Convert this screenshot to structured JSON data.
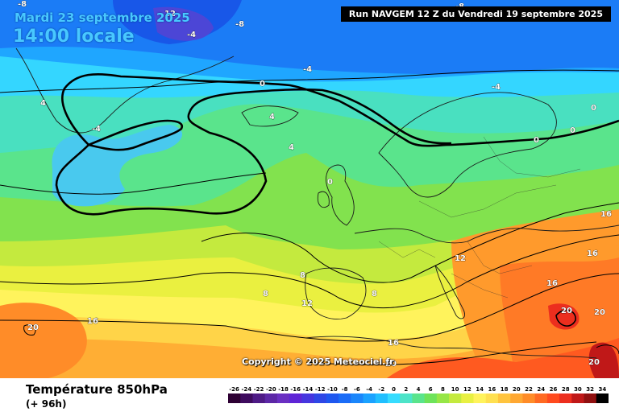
{
  "header": {
    "valid_date": "Mardi 23 septembre 2025",
    "valid_time": "14:00 locale",
    "run_info": "Run NAVGEM 12 Z du Vendredi 19 septembre 2025"
  },
  "copyright": "Copyright © 2025 Meteociel.fr",
  "footer": {
    "parameter": "Température 850hPa",
    "lead_time": "(+ 96h)"
  },
  "legend": {
    "ticks": [
      "-26",
      "-24",
      "-22",
      "-20",
      "-18",
      "-16",
      "-14",
      "-12",
      "-10",
      "-8",
      "-6",
      "-4",
      "-2",
      "0",
      "2",
      "4",
      "6",
      "8",
      "10",
      "12",
      "14",
      "16",
      "18",
      "20",
      "22",
      "24",
      "26",
      "28",
      "30",
      "32",
      "34"
    ],
    "colors": [
      "#2d0033",
      "#3e0b5e",
      "#4e1a86",
      "#5c27a6",
      "#6a2fc2",
      "#5e24d6",
      "#4636df",
      "#2e47e6",
      "#1e57ef",
      "#1a6cf7",
      "#1a86fb",
      "#1aa2ff",
      "#20bfff",
      "#36dcff",
      "#4de4c8",
      "#5ae48c",
      "#6ee35a",
      "#96e646",
      "#c4ea3e",
      "#e8f042",
      "#fff35c",
      "#ffe050",
      "#ffc43e",
      "#ffa832",
      "#ff8c28",
      "#ff6a22",
      "#ff4a1e",
      "#ec2e1e",
      "#c01818",
      "#901010",
      "#000000"
    ]
  },
  "isotherm_labels": [
    "-8",
    "12",
    "-8",
    "-8",
    "-4",
    "0",
    "4",
    "-4",
    "4",
    "4",
    "0",
    "-4",
    "0",
    "0",
    "0",
    "16",
    "12",
    "16",
    "16",
    "8",
    "8",
    "12",
    "8",
    "20",
    "16",
    "20",
    "20",
    "20",
    "16",
    "20",
    "-4"
  ]
}
